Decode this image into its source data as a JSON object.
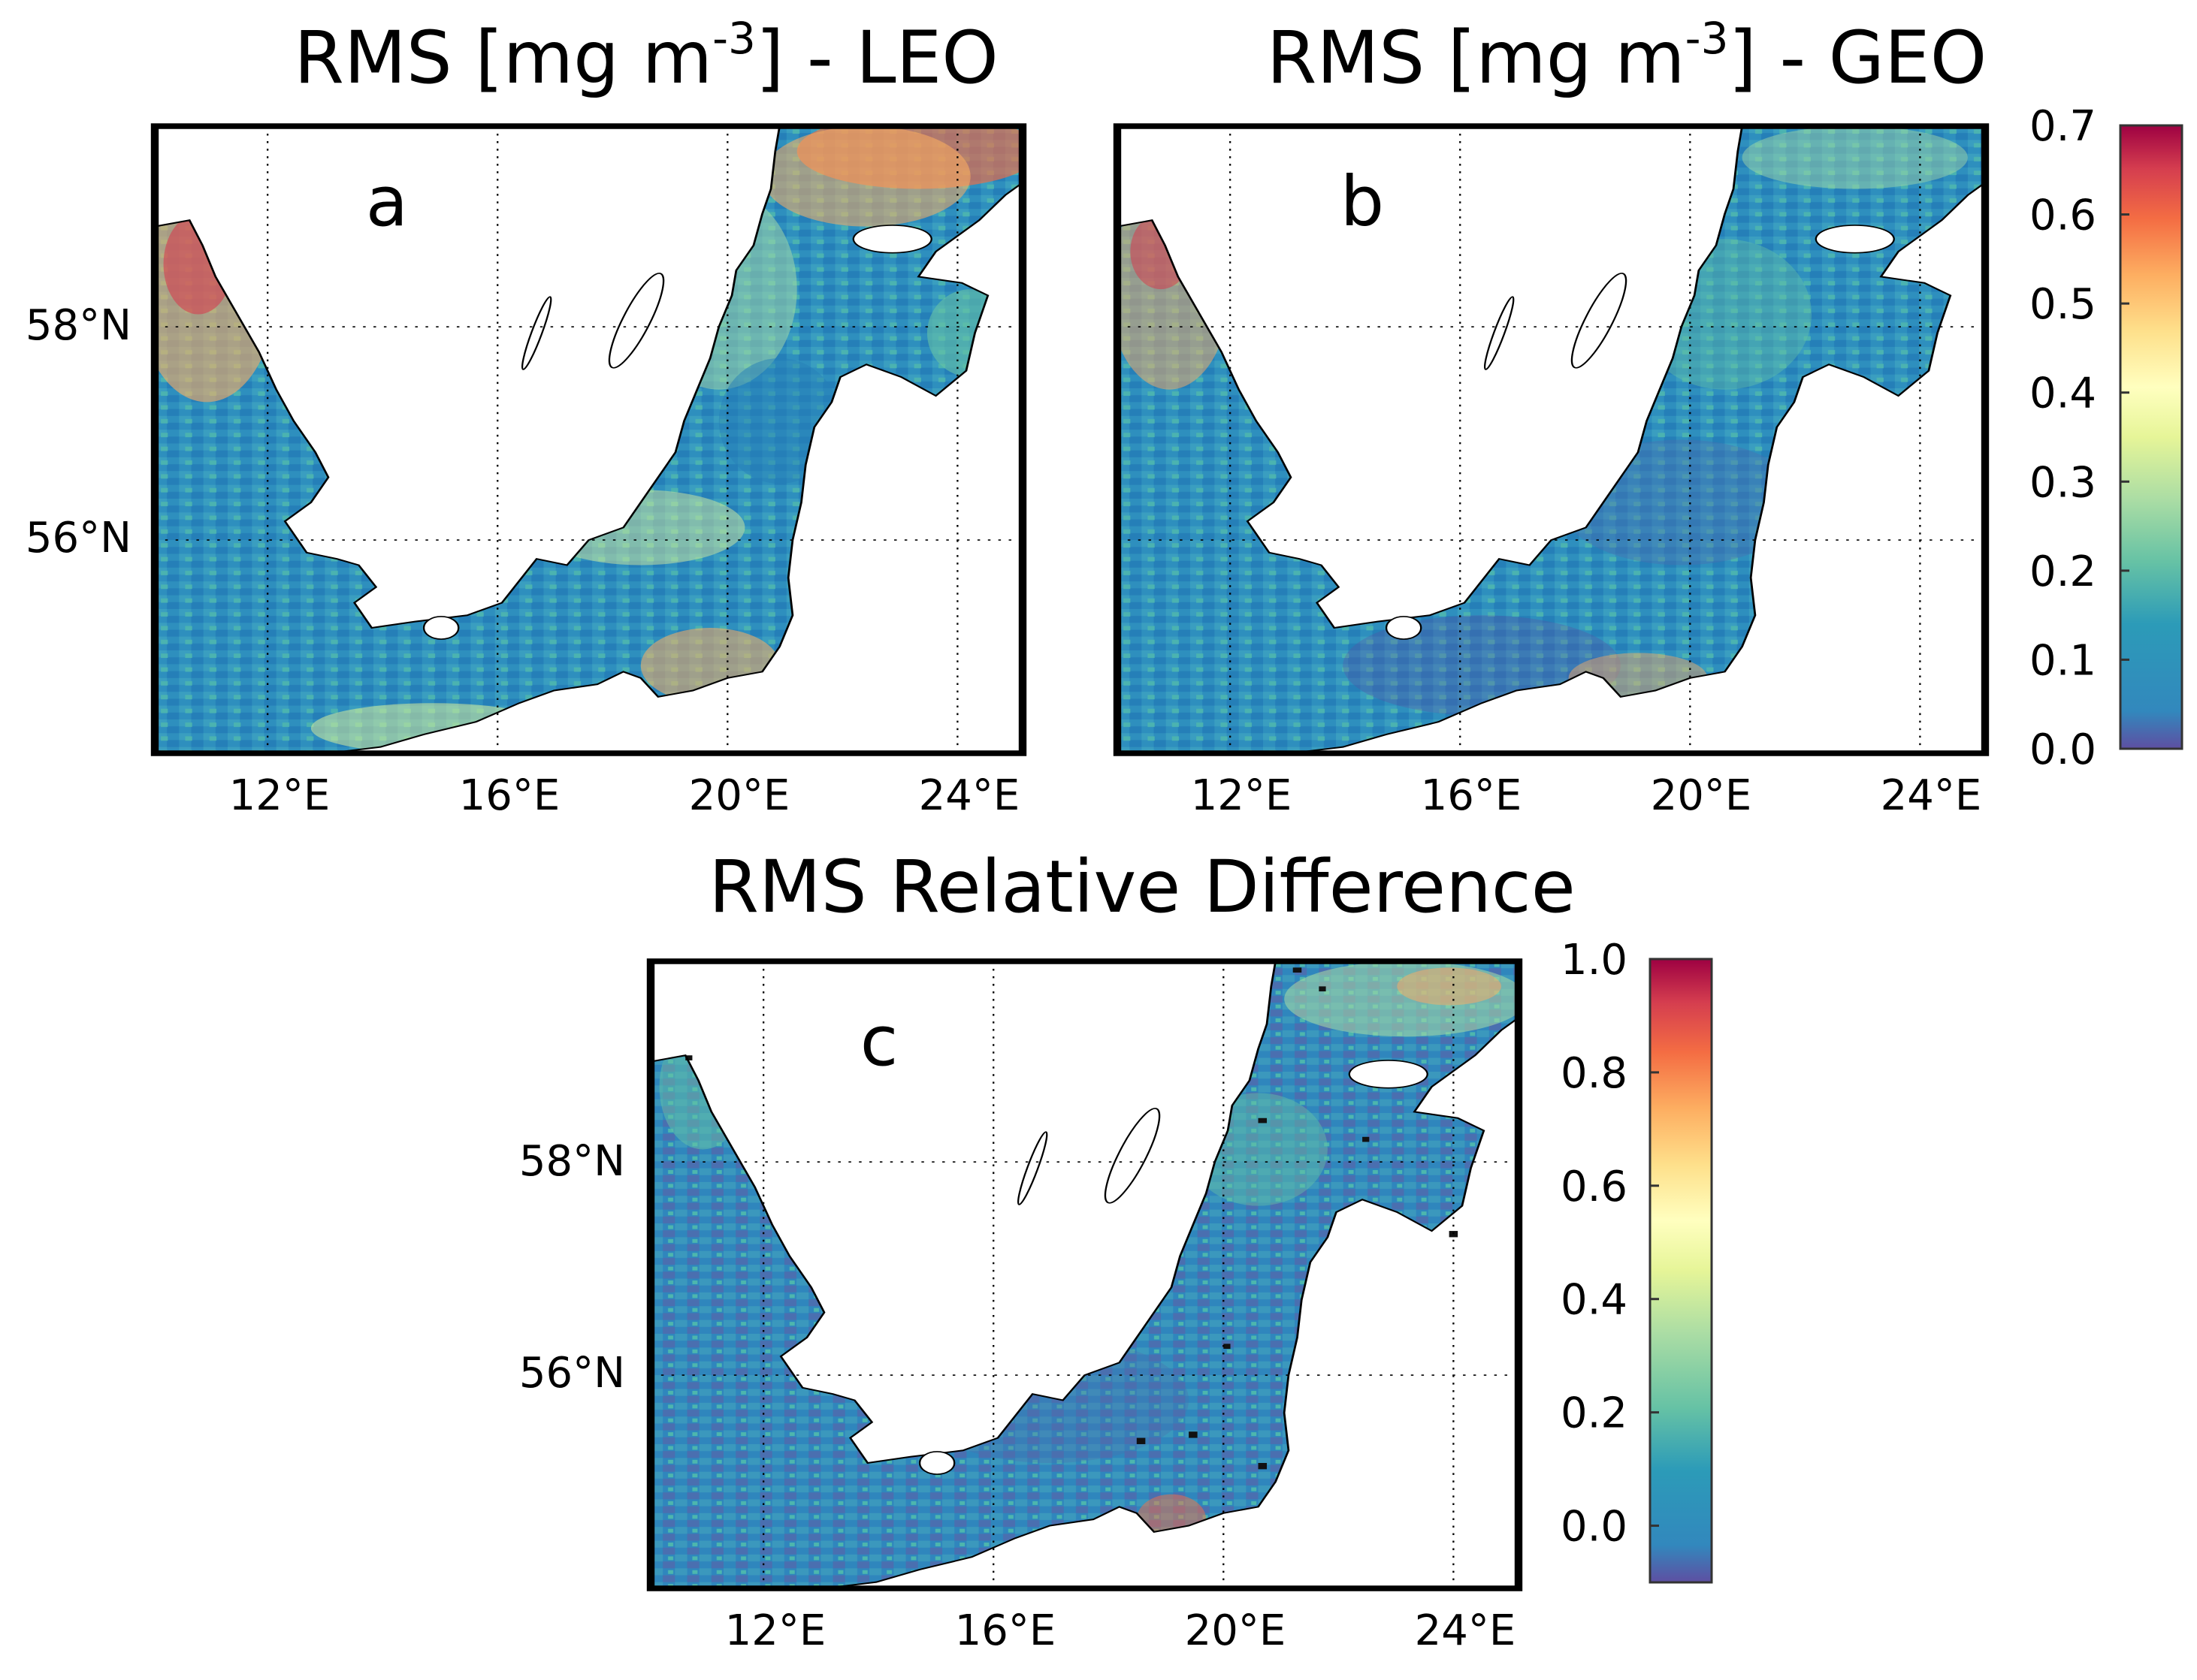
{
  "figure": {
    "panels": [
      {
        "id": "a",
        "letter": "a",
        "title_main": "RMS [mg m",
        "title_sup": "-3",
        "title_tail": "] - LEO",
        "lon_ticks": [
          "12°E",
          "16°E",
          "20°E",
          "24°E"
        ],
        "lat_ticks": [
          "58°N",
          "56°N"
        ]
      },
      {
        "id": "b",
        "letter": "b",
        "title_main": "RMS [mg m",
        "title_sup": "-3",
        "title_tail": "] - GEO",
        "lon_ticks": [
          "12°E",
          "16°E",
          "20°E",
          "24°E"
        ],
        "lat_ticks": []
      },
      {
        "id": "c",
        "letter": "c",
        "title": "RMS Relative Difference",
        "lon_ticks": [
          "12°E",
          "16°E",
          "20°E",
          "24°E"
        ],
        "lat_ticks": [
          "58°N",
          "56°N"
        ]
      }
    ],
    "colorbar_top": {
      "label_for": "RMS [mg m-3]",
      "ticks": [
        "0.7",
        "0.6",
        "0.5",
        "0.4",
        "0.3",
        "0.2",
        "0.1",
        "0.0"
      ],
      "range": [
        0.0,
        0.7
      ]
    },
    "colorbar_bottom": {
      "label_for": "RMS Relative Difference",
      "ticks": [
        "1.0",
        "0.8",
        "0.6",
        "0.4",
        "0.2",
        "0.0"
      ],
      "range": [
        -0.1,
        1.0
      ]
    },
    "colormap": [
      "#5e4fa2",
      "#3288bd",
      "#66c2a5",
      "#abdda4",
      "#e6f598",
      "#ffffbf",
      "#fee08b",
      "#fdae61",
      "#f46d43",
      "#d53e4f",
      "#9e0142"
    ]
  }
}
